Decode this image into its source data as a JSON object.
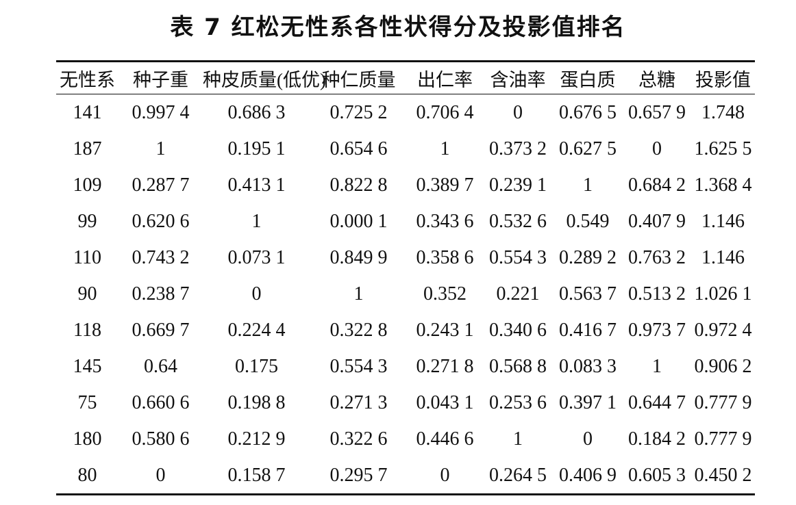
{
  "title": "表 7 红松无性系各性状得分及投影值排名",
  "table": {
    "header": [
      "无性系",
      "种子重",
      "种皮质量(低优)",
      "种仁质量",
      "出仁率",
      "含油率",
      "蛋白质",
      "总糖",
      "投影值"
    ],
    "rows": [
      [
        "141",
        "0.997 4",
        "0.686 3",
        "0.725 2",
        "0.706 4",
        "0",
        "0.676 5",
        "0.657 9",
        "1.748"
      ],
      [
        "187",
        "1",
        "0.195 1",
        "0.654 6",
        "1",
        "0.373 2",
        "0.627 5",
        "0",
        "1.625 5"
      ],
      [
        "109",
        "0.287 7",
        "0.413 1",
        "0.822 8",
        "0.389 7",
        "0.239 1",
        "1",
        "0.684 2",
        "1.368 4"
      ],
      [
        "99",
        "0.620 6",
        "1",
        "0.000 1",
        "0.343 6",
        "0.532 6",
        "0.549",
        "0.407 9",
        "1.146"
      ],
      [
        "110",
        "0.743 2",
        "0.073 1",
        "0.849 9",
        "0.358 6",
        "0.554 3",
        "0.289 2",
        "0.763 2",
        "1.146"
      ],
      [
        "90",
        "0.238 7",
        "0",
        "1",
        "0.352",
        "0.221",
        "0.563 7",
        "0.513 2",
        "1.026 1"
      ],
      [
        "118",
        "0.669 7",
        "0.224 4",
        "0.322 8",
        "0.243 1",
        "0.340 6",
        "0.416 7",
        "0.973 7",
        "0.972 4"
      ],
      [
        "145",
        "0.64",
        "0.175",
        "0.554 3",
        "0.271 8",
        "0.568 8",
        "0.083 3",
        "1",
        "0.906 2"
      ],
      [
        "75",
        "0.660 6",
        "0.198 8",
        "0.271 3",
        "0.043 1",
        "0.253 6",
        "0.397 1",
        "0.644 7",
        "0.777 9"
      ],
      [
        "180",
        "0.580 6",
        "0.212 9",
        "0.322 6",
        "0.446 6",
        "1",
        "0",
        "0.184 2",
        "0.777 9"
      ],
      [
        "80",
        "0",
        "0.158 7",
        "0.295 7",
        "0",
        "0.264 5",
        "0.406 9",
        "0.605 3",
        "0.450 2"
      ]
    ]
  }
}
